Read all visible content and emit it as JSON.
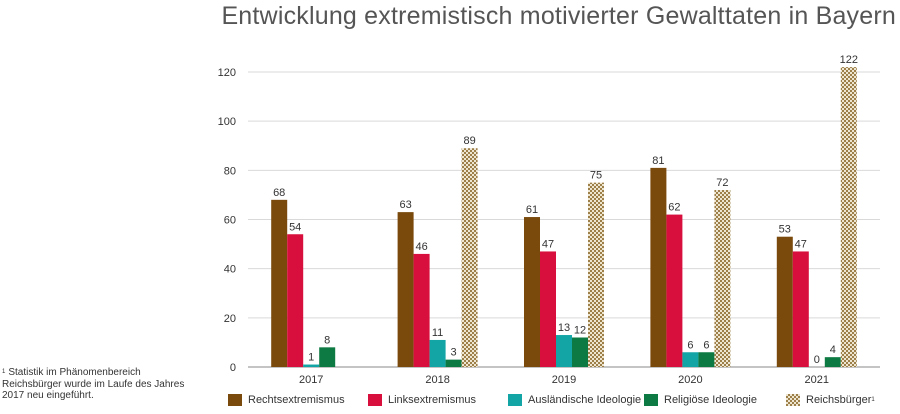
{
  "title": "Entwicklung extremistisch motivierter Gewalttaten in Bayern",
  "footnote": {
    "marker": "1",
    "text": "Statistik im Phänomenbereich Reichsbürger wurde im Laufe des Jahres 2017 neu eingeführt."
  },
  "chart_data": {
    "type": "bar",
    "title": "Entwicklung extremistisch motivierter Gewalttaten in Bayern",
    "categories": [
      "2017",
      "2018",
      "2019",
      "2020",
      "2021"
    ],
    "ylim": [
      0,
      120
    ],
    "yticks": [
      0,
      20,
      40,
      60,
      80,
      100,
      120
    ],
    "grid": true,
    "legend_position": "bottom",
    "series": [
      {
        "name": "Rechtsextremismus",
        "color": "#7a4a0c",
        "pattern": "solid",
        "values": [
          68,
          63,
          61,
          81,
          53
        ]
      },
      {
        "name": "Linksextremismus",
        "color": "#d80f3c",
        "pattern": "solid",
        "values": [
          54,
          46,
          47,
          62,
          47
        ]
      },
      {
        "name": "Ausländische Ideologie",
        "color": "#13a5a5",
        "pattern": "solid",
        "values": [
          1,
          11,
          13,
          6,
          0
        ]
      },
      {
        "name": "Religiöse Ideologie",
        "color": "#0c7a42",
        "pattern": "solid",
        "values": [
          8,
          3,
          12,
          6,
          4
        ]
      },
      {
        "name": "Reichsbürger",
        "name_superscript": "1",
        "color": "#b59c6a",
        "pattern": "checker",
        "values": [
          null,
          89,
          75,
          72,
          122
        ]
      }
    ]
  }
}
